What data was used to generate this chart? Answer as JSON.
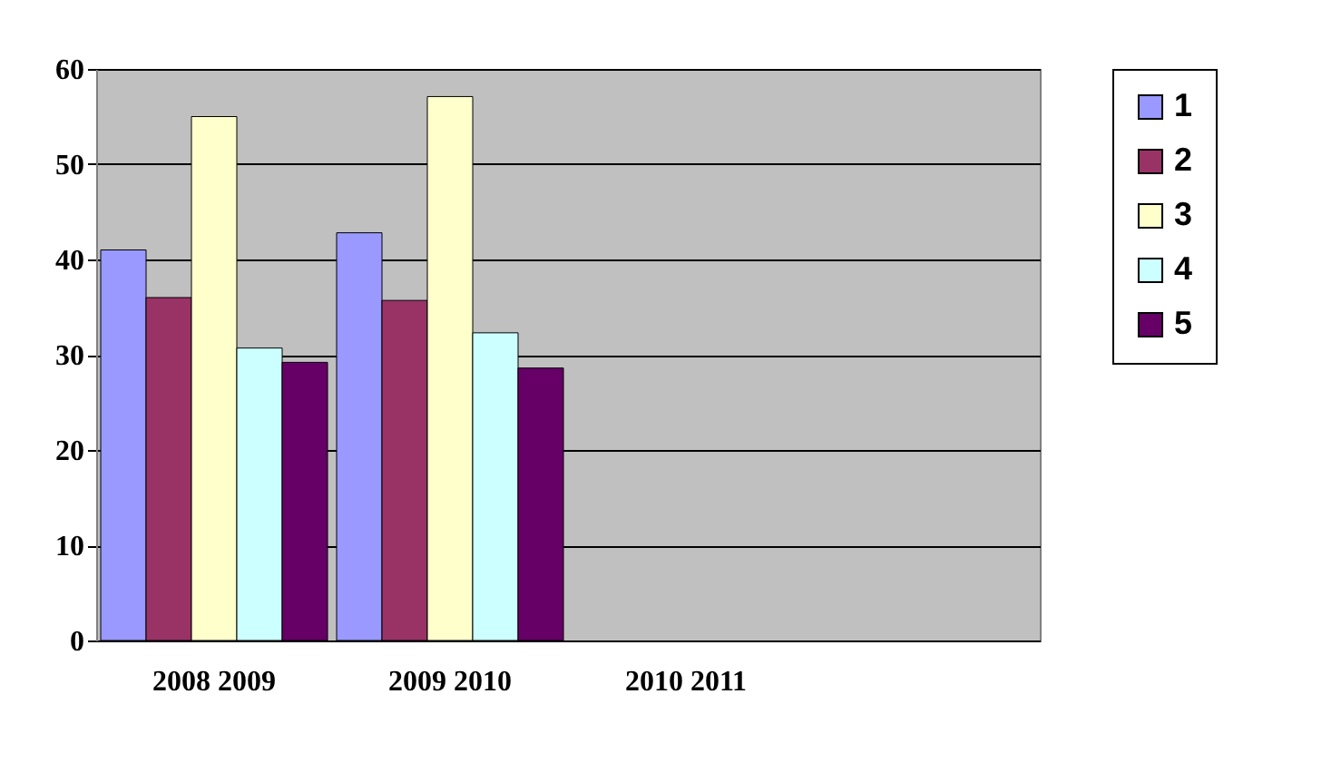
{
  "chart_data": {
    "type": "bar",
    "categories": [
      "2008 2009",
      "2009 2010",
      "2010 2011",
      null
    ],
    "series": [
      {
        "name": "1",
        "color": "#9999ff",
        "values": [
          41,
          42.8,
          null,
          null
        ]
      },
      {
        "name": "2",
        "color": "#993366",
        "values": [
          36,
          35.7,
          null,
          null
        ]
      },
      {
        "name": "3",
        "color": "#ffffcc",
        "values": [
          55,
          57.1,
          null,
          null
        ]
      },
      {
        "name": "4",
        "color": "#ccffff",
        "values": [
          30.7,
          32.3,
          null,
          null
        ]
      },
      {
        "name": "5",
        "color": "#660066",
        "values": [
          29.2,
          28.6,
          null,
          null
        ]
      }
    ],
    "ylim": [
      0,
      60
    ],
    "yticks": [
      0,
      10,
      20,
      30,
      40,
      50,
      60
    ],
    "grid": "y",
    "legend": "right"
  }
}
